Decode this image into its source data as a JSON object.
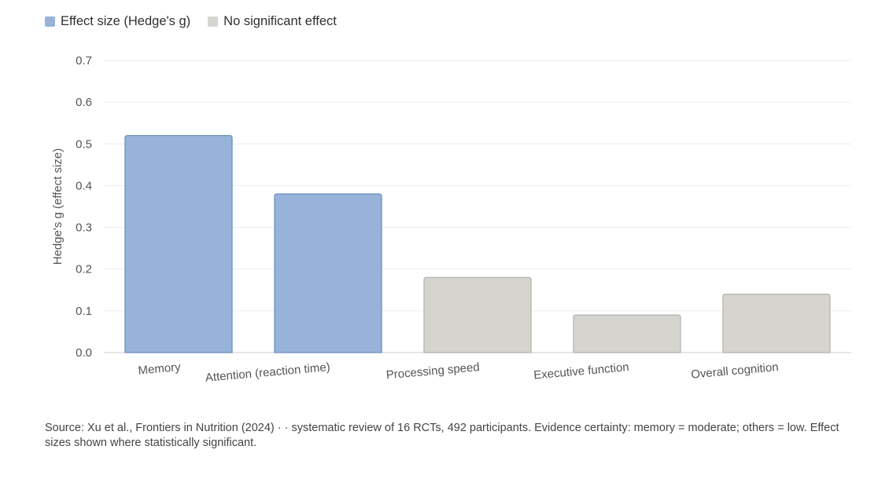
{
  "chart_data": {
    "type": "bar",
    "title": "",
    "xlabel": "",
    "ylabel": "Hedge's g (effect size)",
    "ylim": [
      0,
      0.7
    ],
    "yticks": [
      "0.0",
      "0.1",
      "0.2",
      "0.3",
      "0.4",
      "0.5",
      "0.6",
      "0.7"
    ],
    "ytick_values": [
      0,
      0.1,
      0.2,
      0.3,
      0.4,
      0.5,
      0.6,
      0.7
    ],
    "grid": true,
    "categories": [
      "Memory",
      "Attention (reaction time)",
      "Processing speed",
      "Executive function",
      "Overall cognition"
    ],
    "values": [
      0.52,
      0.38,
      0.18,
      0.09,
      0.14
    ],
    "groups": [
      "significant",
      "significant",
      "not_significant",
      "not_significant",
      "not_significant"
    ],
    "legend": [
      {
        "key": "significant",
        "label": "Effect size (Hedge's g)",
        "color": "#97b3da",
        "stroke": "#6f8fbf"
      },
      {
        "key": "not_significant",
        "label": "No significant effect",
        "color": "#d5d4cf",
        "stroke": "#b5b4ae"
      }
    ],
    "legend_position": "top-left"
  },
  "source_text": "Source: Xu et al., Frontiers in Nutrition (2024) ·  · systematic review of 16 RCTs, 492 participants. Evidence certainty: memory = moderate; others = low. Effect sizes shown where statistically significant."
}
